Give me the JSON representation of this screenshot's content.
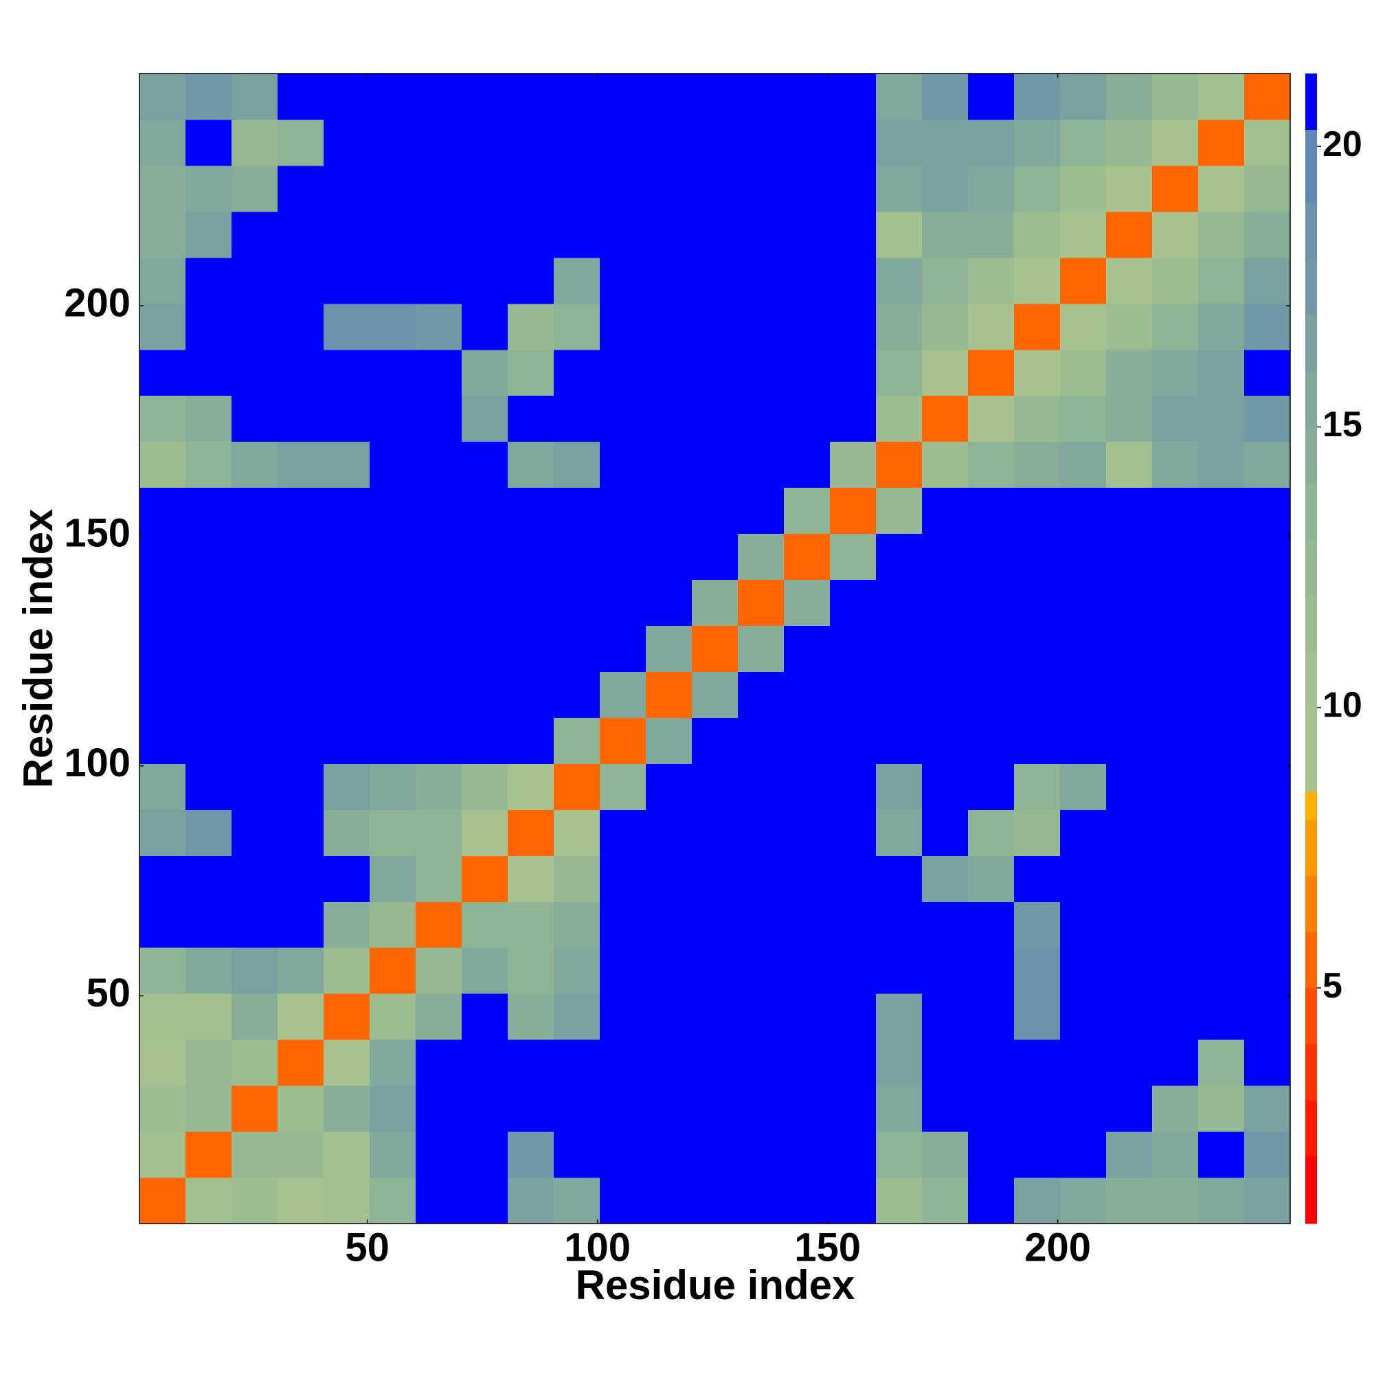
{
  "chart_data": {
    "type": "heatmap",
    "xlabel": "Residue index",
    "ylabel": "Residue index",
    "x_edges": [
      0.5,
      10.5,
      20.5,
      30.5,
      40.5,
      50.5,
      60.5,
      70.5,
      80.5,
      90.5,
      100.5,
      110.5,
      120.5,
      130.5,
      140.5,
      150.5,
      160.5,
      170.5,
      180.5,
      190.5,
      200.5,
      210.5,
      220.5,
      230.5,
      240.5,
      250.5
    ],
    "y_edges": [
      0.5,
      10.5,
      20.5,
      30.5,
      40.5,
      50.5,
      60.5,
      70.5,
      80.5,
      90.5,
      100.5,
      110.5,
      120.5,
      130.5,
      140.5,
      150.5,
      160.5,
      170.5,
      180.5,
      190.5,
      200.5,
      210.5,
      220.5,
      230.5,
      240.5,
      250.5
    ],
    "z": [
      [
        6,
        11,
        12,
        10,
        11,
        14,
        21,
        21,
        17,
        16,
        21,
        21,
        21,
        21,
        21,
        21,
        12,
        14,
        21,
        17,
        16,
        15,
        15,
        16,
        17
      ],
      [
        11,
        6,
        13,
        13,
        11,
        16,
        21,
        21,
        18,
        21,
        21,
        21,
        21,
        21,
        21,
        21,
        14,
        15,
        21,
        21,
        21,
        17,
        16,
        21,
        18
      ],
      [
        12,
        13,
        6,
        12,
        15,
        17,
        21,
        21,
        21,
        21,
        21,
        21,
        21,
        21,
        21,
        21,
        16,
        21,
        21,
        21,
        21,
        21,
        15,
        13,
        17
      ],
      [
        10,
        13,
        12,
        6,
        10,
        16,
        21,
        21,
        21,
        21,
        21,
        21,
        21,
        21,
        21,
        21,
        17,
        21,
        21,
        21,
        21,
        21,
        21,
        14,
        21
      ],
      [
        11,
        11,
        15,
        10,
        6,
        12,
        15,
        21,
        15,
        17,
        21,
        21,
        21,
        21,
        21,
        21,
        17,
        21,
        21,
        19,
        21,
        21,
        21,
        21,
        21
      ],
      [
        14,
        16,
        17,
        16,
        12,
        6,
        13,
        16,
        14,
        16,
        21,
        21,
        21,
        21,
        21,
        21,
        21,
        21,
        21,
        19,
        21,
        21,
        21,
        21,
        21
      ],
      [
        21,
        21,
        21,
        21,
        15,
        13,
        6,
        14,
        14,
        15,
        21,
        21,
        21,
        21,
        21,
        21,
        21,
        21,
        21,
        18,
        21,
        21,
        21,
        21,
        21
      ],
      [
        21,
        21,
        21,
        21,
        21,
        16,
        14,
        6,
        10,
        13,
        21,
        21,
        21,
        21,
        21,
        21,
        21,
        17,
        16,
        21,
        21,
        21,
        21,
        21,
        21
      ],
      [
        17,
        18,
        21,
        21,
        15,
        14,
        14,
        10,
        6,
        10,
        21,
        21,
        21,
        21,
        21,
        21,
        16,
        21,
        14,
        13,
        21,
        21,
        21,
        21,
        21
      ],
      [
        16,
        21,
        21,
        21,
        17,
        16,
        15,
        13,
        10,
        6,
        14,
        21,
        21,
        21,
        21,
        21,
        17,
        21,
        21,
        14,
        16,
        21,
        21,
        21,
        21
      ],
      [
        21,
        21,
        21,
        21,
        21,
        21,
        21,
        21,
        21,
        14,
        6,
        16,
        21,
        21,
        21,
        21,
        21,
        21,
        21,
        21,
        21,
        21,
        21,
        21,
        21
      ],
      [
        21,
        21,
        21,
        21,
        21,
        21,
        21,
        21,
        21,
        21,
        16,
        6,
        16,
        21,
        21,
        21,
        21,
        21,
        21,
        21,
        21,
        21,
        21,
        21,
        21
      ],
      [
        21,
        21,
        21,
        21,
        21,
        21,
        21,
        21,
        21,
        21,
        21,
        16,
        6,
        15,
        21,
        21,
        21,
        21,
        21,
        21,
        21,
        21,
        21,
        21,
        21
      ],
      [
        21,
        21,
        21,
        21,
        21,
        21,
        21,
        21,
        21,
        21,
        21,
        21,
        15,
        6,
        15,
        21,
        21,
        21,
        21,
        21,
        21,
        21,
        21,
        21,
        21
      ],
      [
        21,
        21,
        21,
        21,
        21,
        21,
        21,
        21,
        21,
        21,
        21,
        21,
        21,
        15,
        6,
        14,
        21,
        21,
        21,
        21,
        21,
        21,
        21,
        21,
        21
      ],
      [
        21,
        21,
        21,
        21,
        21,
        21,
        21,
        21,
        21,
        21,
        21,
        21,
        21,
        21,
        14,
        6,
        13,
        21,
        21,
        21,
        21,
        21,
        21,
        21,
        21
      ],
      [
        12,
        14,
        16,
        17,
        17,
        21,
        21,
        21,
        16,
        17,
        21,
        21,
        21,
        21,
        21,
        13,
        6,
        12,
        14,
        15,
        16,
        11,
        16,
        17,
        16
      ],
      [
        14,
        15,
        21,
        21,
        21,
        21,
        21,
        17,
        21,
        21,
        21,
        21,
        21,
        21,
        21,
        21,
        12,
        6,
        10,
        13,
        14,
        15,
        17,
        17,
        18
      ],
      [
        21,
        21,
        21,
        21,
        21,
        21,
        21,
        16,
        14,
        21,
        21,
        21,
        21,
        21,
        21,
        21,
        14,
        10,
        6,
        9,
        12,
        15,
        16,
        17,
        21
      ],
      [
        17,
        21,
        21,
        21,
        19,
        19,
        18,
        21,
        13,
        14,
        21,
        21,
        21,
        21,
        21,
        21,
        15,
        13,
        9,
        6,
        9,
        12,
        14,
        16,
        18
      ],
      [
        16,
        21,
        21,
        21,
        21,
        21,
        21,
        21,
        21,
        16,
        21,
        21,
        21,
        21,
        21,
        21,
        16,
        14,
        12,
        9,
        6,
        9,
        12,
        14,
        17
      ],
      [
        15,
        17,
        21,
        21,
        21,
        21,
        21,
        21,
        21,
        21,
        21,
        21,
        21,
        21,
        21,
        21,
        11,
        15,
        15,
        12,
        9,
        6,
        10,
        13,
        15
      ],
      [
        15,
        16,
        15,
        21,
        21,
        21,
        21,
        21,
        21,
        21,
        21,
        21,
        21,
        21,
        21,
        21,
        16,
        17,
        16,
        14,
        12,
        10,
        6,
        10,
        13
      ],
      [
        16,
        21,
        13,
        14,
        21,
        21,
        21,
        21,
        21,
        21,
        21,
        21,
        21,
        21,
        21,
        21,
        17,
        17,
        17,
        16,
        14,
        13,
        10,
        6,
        11
      ],
      [
        17,
        18,
        17,
        21,
        21,
        21,
        21,
        21,
        21,
        21,
        21,
        21,
        21,
        21,
        21,
        21,
        16,
        18,
        21,
        18,
        17,
        15,
        13,
        11,
        6
      ]
    ],
    "xlim": [
      0.5,
      250.5
    ],
    "ylim": [
      0.5,
      250.5
    ],
    "xticks": [
      50,
      100,
      150,
      200
    ],
    "yticks": [
      50,
      100,
      150,
      200
    ],
    "clim": [
      0.8,
      21.3
    ],
    "cticks": [
      5,
      10,
      15,
      20
    ],
    "cbounds": [
      0.8,
      2,
      3,
      4,
      5,
      6,
      7,
      8,
      8.5,
      10,
      11,
      12,
      13,
      14,
      15,
      16,
      17,
      18,
      19,
      20.3,
      21.3
    ],
    "colors": [
      "#ff0000",
      "#ff1a00",
      "#ff3300",
      "#ff4d00",
      "#ff6600",
      "#ff8000",
      "#ff9900",
      "#ffb000",
      "#a7c28e",
      "#a3c08f",
      "#9dbd90",
      "#96b992",
      "#8fb495",
      "#88ae98",
      "#80a89c",
      "#78a1a0",
      "#7099a6",
      "#6a93ab",
      "#5f88b5",
      "#0000ff"
    ]
  }
}
